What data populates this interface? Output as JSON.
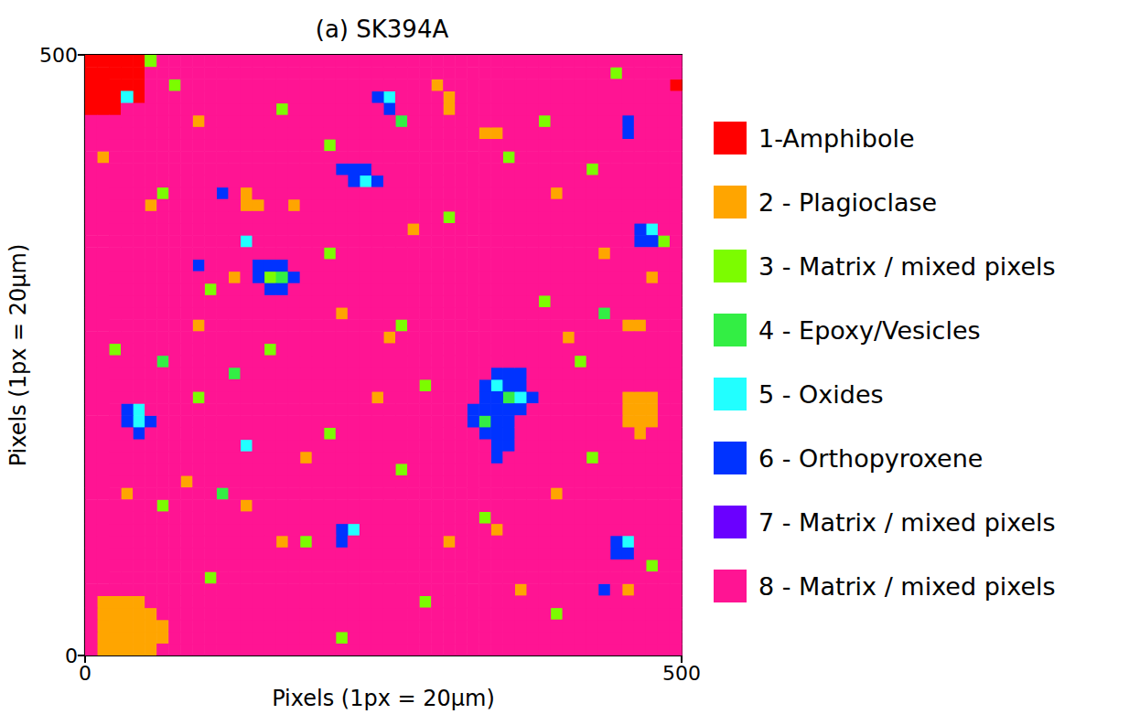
{
  "chart_data": {
    "type": "heatmap",
    "title": "(a) SK394A",
    "x_label": "Pixels (1px = 20μm)",
    "y_label": "Pixels (1px = 20μm)",
    "xlim": [
      0,
      500
    ],
    "ylim": [
      0,
      500
    ],
    "xticks": [
      0,
      500
    ],
    "yticks": [
      0,
      500
    ],
    "grid": false,
    "legend": "right",
    "cell_size": 10,
    "fill": 8,
    "classes": [
      {
        "value": 1,
        "name": "1-Amphibole",
        "color": "#ff0000"
      },
      {
        "value": 2,
        "name": "2 - Plagioclase",
        "color": "#ffa500"
      },
      {
        "value": 3,
        "name": "3 - Matrix / mixed pixels",
        "color": "#7cfc00"
      },
      {
        "value": 4,
        "name": "4 - Epoxy/Vesicles",
        "color": "#33ee44"
      },
      {
        "value": 5,
        "name": "5 - Oxides",
        "color": "#22ffff"
      },
      {
        "value": 6,
        "name": "6 - Orthopyroxene",
        "color": "#0033ff"
      },
      {
        "value": 7,
        "name": "7 - Matrix / mixed pixels",
        "color": "#6a00ff"
      },
      {
        "value": 8,
        "name": "8 - Matrix / mixed pixels",
        "color": "#ff1493"
      }
    ],
    "cells": [
      [
        0,
        490,
        1
      ],
      [
        10,
        490,
        1
      ],
      [
        20,
        490,
        1
      ],
      [
        30,
        490,
        1
      ],
      [
        40,
        490,
        1
      ],
      [
        50,
        490,
        3
      ],
      [
        0,
        480,
        1
      ],
      [
        10,
        480,
        1
      ],
      [
        20,
        480,
        1
      ],
      [
        30,
        480,
        1
      ],
      [
        40,
        480,
        1
      ],
      [
        0,
        470,
        1
      ],
      [
        10,
        470,
        1
      ],
      [
        20,
        470,
        1
      ],
      [
        30,
        470,
        1
      ],
      [
        40,
        470,
        1
      ],
      [
        290,
        470,
        2
      ],
      [
        490,
        470,
        1
      ],
      [
        0,
        460,
        1
      ],
      [
        10,
        460,
        1
      ],
      [
        20,
        460,
        1
      ],
      [
        30,
        460,
        5
      ],
      [
        40,
        460,
        1
      ],
      [
        240,
        460,
        6
      ],
      [
        250,
        460,
        5
      ],
      [
        300,
        460,
        2
      ],
      [
        0,
        450,
        1
      ],
      [
        10,
        450,
        1
      ],
      [
        20,
        450,
        1
      ],
      [
        250,
        450,
        6
      ],
      [
        300,
        450,
        2
      ],
      [
        90,
        440,
        2
      ],
      [
        450,
        440,
        6
      ],
      [
        330,
        430,
        2
      ],
      [
        340,
        430,
        2
      ],
      [
        450,
        430,
        6
      ],
      [
        10,
        410,
        2
      ],
      [
        210,
        400,
        6
      ],
      [
        220,
        400,
        6
      ],
      [
        230,
        400,
        6
      ],
      [
        220,
        390,
        6
      ],
      [
        230,
        390,
        5
      ],
      [
        240,
        390,
        6
      ],
      [
        110,
        380,
        6
      ],
      [
        130,
        380,
        2
      ],
      [
        390,
        380,
        2
      ],
      [
        50,
        370,
        2
      ],
      [
        130,
        370,
        2
      ],
      [
        140,
        370,
        2
      ],
      [
        170,
        370,
        2
      ],
      [
        270,
        350,
        2
      ],
      [
        460,
        350,
        6
      ],
      [
        470,
        350,
        5
      ],
      [
        130,
        340,
        5
      ],
      [
        460,
        340,
        6
      ],
      [
        470,
        340,
        6
      ],
      [
        430,
        330,
        2
      ],
      [
        90,
        320,
        6
      ],
      [
        140,
        320,
        6
      ],
      [
        150,
        320,
        6
      ],
      [
        160,
        320,
        6
      ],
      [
        120,
        310,
        2
      ],
      [
        140,
        310,
        6
      ],
      [
        150,
        310,
        3
      ],
      [
        160,
        310,
        4
      ],
      [
        170,
        310,
        6
      ],
      [
        470,
        310,
        2
      ],
      [
        150,
        300,
        6
      ],
      [
        160,
        300,
        6
      ],
      [
        210,
        280,
        2
      ],
      [
        430,
        280,
        4
      ],
      [
        90,
        270,
        2
      ],
      [
        450,
        270,
        2
      ],
      [
        460,
        270,
        2
      ],
      [
        250,
        260,
        2
      ],
      [
        400,
        260,
        2
      ],
      [
        60,
        240,
        4
      ],
      [
        340,
        230,
        6
      ],
      [
        350,
        230,
        6
      ],
      [
        360,
        230,
        6
      ],
      [
        330,
        220,
        6
      ],
      [
        340,
        220,
        5
      ],
      [
        350,
        220,
        6
      ],
      [
        360,
        220,
        6
      ],
      [
        240,
        210,
        2
      ],
      [
        330,
        210,
        6
      ],
      [
        340,
        210,
        6
      ],
      [
        350,
        210,
        4
      ],
      [
        360,
        210,
        5
      ],
      [
        370,
        210,
        6
      ],
      [
        450,
        210,
        2
      ],
      [
        460,
        210,
        2
      ],
      [
        470,
        210,
        2
      ],
      [
        30,
        200,
        6
      ],
      [
        40,
        200,
        5
      ],
      [
        320,
        200,
        6
      ],
      [
        330,
        200,
        6
      ],
      [
        340,
        200,
        6
      ],
      [
        350,
        200,
        6
      ],
      [
        360,
        200,
        6
      ],
      [
        450,
        200,
        2
      ],
      [
        460,
        200,
        2
      ],
      [
        470,
        200,
        2
      ],
      [
        30,
        190,
        6
      ],
      [
        40,
        190,
        5
      ],
      [
        50,
        190,
        6
      ],
      [
        320,
        190,
        6
      ],
      [
        330,
        190,
        4
      ],
      [
        340,
        190,
        6
      ],
      [
        350,
        190,
        6
      ],
      [
        450,
        190,
        2
      ],
      [
        460,
        190,
        2
      ],
      [
        470,
        190,
        2
      ],
      [
        40,
        180,
        6
      ],
      [
        330,
        180,
        6
      ],
      [
        340,
        180,
        6
      ],
      [
        350,
        180,
        6
      ],
      [
        460,
        180,
        2
      ],
      [
        130,
        170,
        5
      ],
      [
        340,
        170,
        6
      ],
      [
        350,
        170,
        6
      ],
      [
        180,
        160,
        2
      ],
      [
        340,
        160,
        6
      ],
      [
        80,
        140,
        2
      ],
      [
        30,
        130,
        2
      ],
      [
        110,
        130,
        4
      ],
      [
        390,
        130,
        2
      ],
      [
        130,
        120,
        2
      ],
      [
        210,
        100,
        6
      ],
      [
        220,
        100,
        5
      ],
      [
        340,
        100,
        2
      ],
      [
        160,
        90,
        2
      ],
      [
        210,
        90,
        6
      ],
      [
        300,
        90,
        2
      ],
      [
        440,
        90,
        6
      ],
      [
        450,
        90,
        5
      ],
      [
        440,
        80,
        6
      ],
      [
        450,
        80,
        6
      ],
      [
        360,
        50,
        2
      ],
      [
        430,
        50,
        6
      ],
      [
        450,
        50,
        2
      ],
      [
        10,
        40,
        2
      ],
      [
        20,
        40,
        2
      ],
      [
        30,
        40,
        2
      ],
      [
        40,
        40,
        2
      ],
      [
        10,
        30,
        2
      ],
      [
        20,
        30,
        2
      ],
      [
        30,
        30,
        2
      ],
      [
        40,
        30,
        2
      ],
      [
        50,
        30,
        2
      ],
      [
        10,
        20,
        2
      ],
      [
        20,
        20,
        2
      ],
      [
        30,
        20,
        2
      ],
      [
        40,
        20,
        2
      ],
      [
        50,
        20,
        2
      ],
      [
        60,
        20,
        2
      ],
      [
        10,
        10,
        2
      ],
      [
        20,
        10,
        2
      ],
      [
        30,
        10,
        2
      ],
      [
        40,
        10,
        2
      ],
      [
        50,
        10,
        2
      ],
      [
        60,
        10,
        2
      ],
      [
        10,
        0,
        2
      ],
      [
        20,
        0,
        2
      ],
      [
        30,
        0,
        2
      ],
      [
        40,
        0,
        2
      ],
      [
        50,
        0,
        2
      ],
      [
        70,
        470,
        3
      ],
      [
        160,
        450,
        3
      ],
      [
        380,
        440,
        3
      ],
      [
        200,
        420,
        3
      ],
      [
        420,
        400,
        3
      ],
      [
        60,
        380,
        3
      ],
      [
        300,
        360,
        3
      ],
      [
        480,
        340,
        3
      ],
      [
        200,
        330,
        3
      ],
      [
        100,
        300,
        3
      ],
      [
        380,
        290,
        3
      ],
      [
        260,
        270,
        3
      ],
      [
        150,
        250,
        3
      ],
      [
        410,
        240,
        3
      ],
      [
        280,
        220,
        3
      ],
      [
        90,
        210,
        3
      ],
      [
        200,
        180,
        3
      ],
      [
        420,
        160,
        3
      ],
      [
        260,
        150,
        3
      ],
      [
        60,
        120,
        3
      ],
      [
        330,
        110,
        3
      ],
      [
        180,
        90,
        3
      ],
      [
        470,
        70,
        3
      ],
      [
        100,
        60,
        3
      ],
      [
        280,
        40,
        3
      ],
      [
        390,
        30,
        3
      ],
      [
        210,
        10,
        3
      ],
      [
        440,
        480,
        3
      ],
      [
        350,
        410,
        3
      ],
      [
        20,
        250,
        3
      ],
      [
        260,
        440,
        4
      ],
      [
        120,
        230,
        4
      ]
    ]
  }
}
